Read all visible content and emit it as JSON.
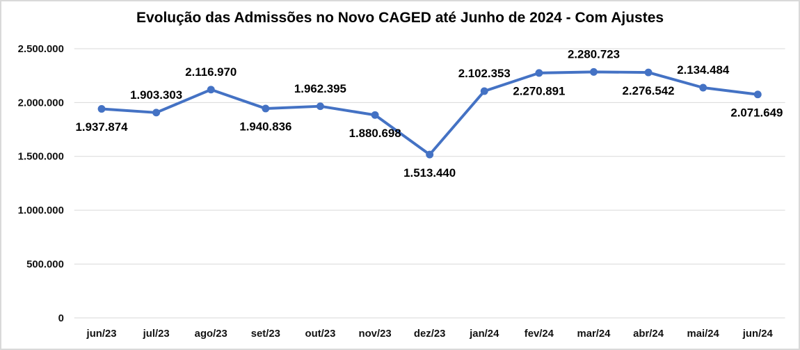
{
  "chart_data": {
    "type": "line",
    "title": "Evolução das Admissões no Novo CAGED até Junho de 2024 - Com Ajustes",
    "categories": [
      "jun/23",
      "jul/23",
      "ago/23",
      "set/23",
      "out/23",
      "nov/23",
      "dez/23",
      "jan/24",
      "fev/24",
      "mar/24",
      "abr/24",
      "mai/24",
      "jun/24"
    ],
    "series": [
      {
        "values": [
          1937874,
          1903303,
          2116970,
          1940836,
          1962395,
          1880698,
          1513440,
          2102353,
          2270891,
          2280723,
          2276542,
          2134484,
          2071649
        ],
        "point_labels": [
          "1.937.874",
          "1.903.303",
          "2.116.970",
          "1.940.836",
          "1.962.395",
          "1.880.698",
          "1.513.440",
          "2.102.353",
          "2.270.891",
          "2.280.723",
          "2.276.542",
          "2.134.484",
          "2.071.649"
        ],
        "label_side": [
          "below",
          "above",
          "above",
          "below",
          "above",
          "below",
          "below",
          "above",
          "below",
          "above",
          "below",
          "above",
          "below"
        ],
        "color": "#4472C4"
      }
    ],
    "y_axis": {
      "min": 0,
      "max": 2500000,
      "tick_interval": 500000,
      "tick_labels": [
        "0",
        "500.000",
        "1.000.000",
        "1.500.000",
        "2.000.000",
        "2.500.000"
      ]
    },
    "xlabel": "",
    "ylabel": "",
    "grid": true,
    "legend": "none",
    "grid_color": "#D9D9D9",
    "text_color": "#000000",
    "background_color": "#FFFFFF"
  }
}
